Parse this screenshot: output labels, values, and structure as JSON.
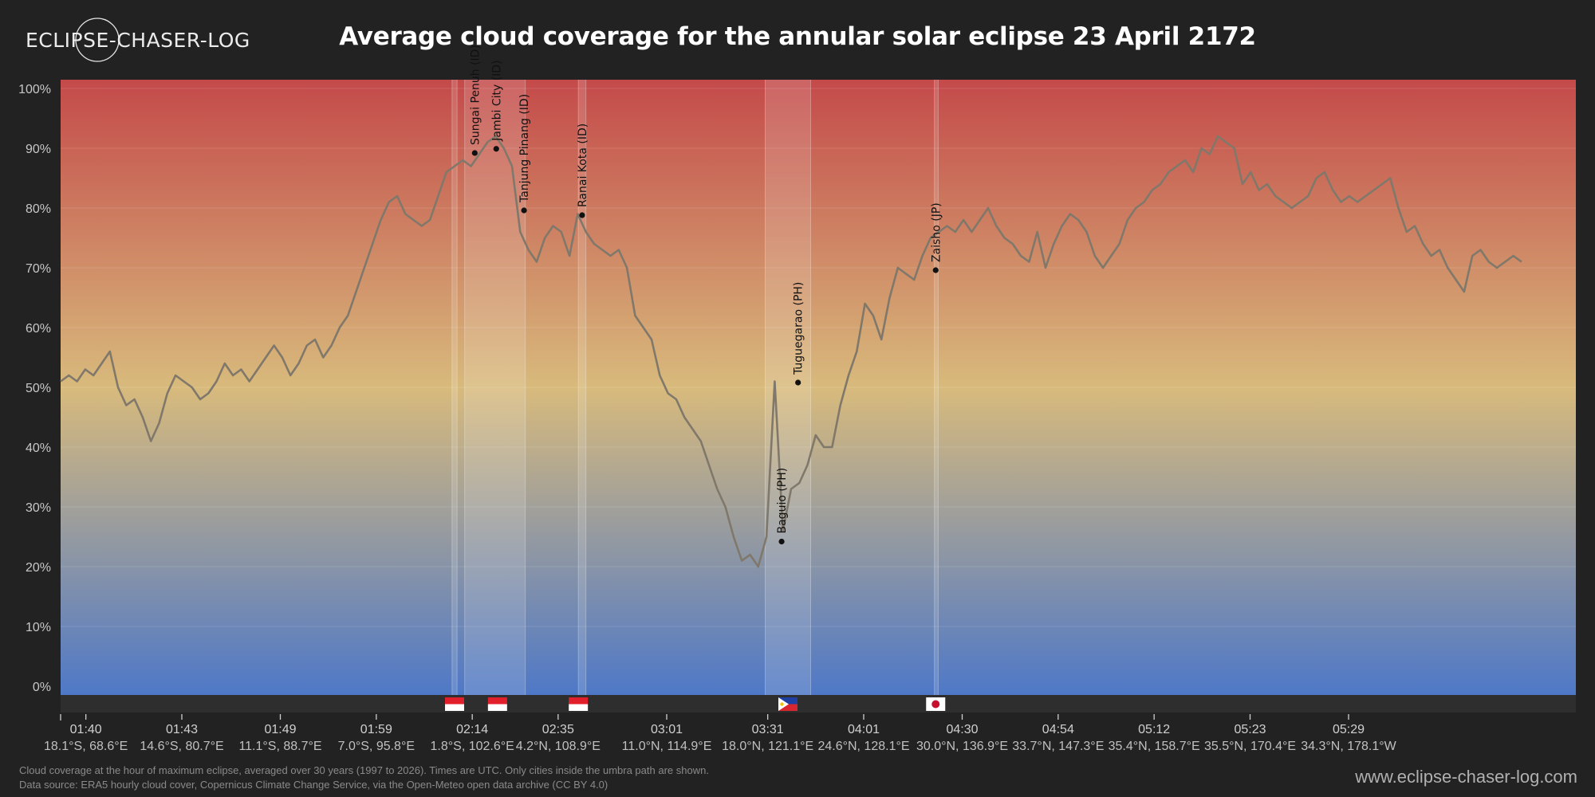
{
  "header": {
    "brand": "ECLIPSE-CHASER-LOG",
    "title": "Average cloud coverage for the annular solar eclipse 23 April 2172"
  },
  "footer": {
    "note_line1": "Cloud coverage at the hour of maximum eclipse, averaged over 30 years (1997 to 2026). Times are UTC. Only cities inside the umbra path are shown.",
    "note_line2": "Data source: ERA5 hourly cloud cover, Copernicus Climate Change Service, via the Open-Meteo open data archive (CC BY 4.0)",
    "website": "www.eclipse-chaser-log.com"
  },
  "colors": {
    "background": "#222222",
    "gradient_top": "#c44a4a",
    "gradient_mid": "#d8ba7c",
    "gradient_bottom": "#4e78c7",
    "line": "#80786a",
    "band_fill": "#ffffff",
    "flag_strip": "#2e2e2e"
  },
  "chart_data": {
    "type": "line",
    "ylim": [
      0,
      100
    ],
    "yticks": [
      "0%",
      "10%",
      "20%",
      "30%",
      "40%",
      "50%",
      "60%",
      "70%",
      "80%",
      "90%",
      "100%"
    ],
    "grid": true,
    "x_domain": [
      0,
      600
    ],
    "x_ticks": [
      {
        "x": 10,
        "time": "01:40",
        "coord": "18.1°S, 68.6°E"
      },
      {
        "x": 48,
        "time": "01:43",
        "coord": "14.6°S, 80.7°E"
      },
      {
        "x": 87,
        "time": "01:49",
        "coord": "11.1°S, 88.7°E"
      },
      {
        "x": 125,
        "time": "01:59",
        "coord": "7.0°S, 95.8°E"
      },
      {
        "x": 163,
        "time": "02:14",
        "coord": "1.8°S, 102.6°E"
      },
      {
        "x": 197,
        "time": "02:35",
        "coord": "4.2°N, 108.9°E"
      },
      {
        "x": 240,
        "time": "03:01",
        "coord": "11.0°N, 114.9°E"
      },
      {
        "x": 280,
        "time": "03:31",
        "coord": "18.0°N, 121.1°E"
      },
      {
        "x": 318,
        "time": "04:01",
        "coord": "24.6°N, 128.1°E"
      },
      {
        "x": 357,
        "time": "04:30",
        "coord": "30.0°N, 136.9°E"
      },
      {
        "x": 395,
        "time": "04:54",
        "coord": "33.7°N, 147.3°E"
      },
      {
        "x": 433,
        "time": "05:12",
        "coord": "35.4°N, 158.7°E"
      },
      {
        "x": 471,
        "time": "05:23",
        "coord": "35.5°N, 170.4°E"
      },
      {
        "x": 510,
        "time": "05:29",
        "coord": "34.3°N, 178.1°W"
      }
    ],
    "series": [
      {
        "values": [
          51,
          52,
          51,
          53,
          52,
          54,
          56,
          50,
          47,
          48,
          45,
          41,
          44,
          49,
          52,
          51,
          50,
          48,
          49,
          51,
          54,
          52,
          53,
          51,
          53,
          55,
          57,
          55,
          52,
          54,
          57,
          58,
          55,
          57,
          60,
          62,
          66,
          70,
          74,
          78,
          81,
          82,
          79,
          78,
          77,
          78,
          82,
          86,
          87,
          88,
          87,
          89,
          91,
          92,
          90,
          87,
          76,
          73,
          71,
          75,
          77,
          76,
          72,
          79,
          76,
          74,
          73,
          72,
          73,
          70,
          62,
          60,
          58,
          52,
          49,
          48,
          45,
          43,
          41,
          37,
          33,
          30,
          25,
          21,
          22,
          20,
          25,
          51,
          26,
          33,
          34,
          37,
          42,
          40,
          40,
          47,
          52,
          56,
          64,
          62,
          58,
          65,
          70,
          69,
          68,
          72,
          75,
          76,
          77,
          76,
          78,
          76,
          78,
          80,
          77,
          75,
          74,
          72,
          71,
          76,
          70,
          74,
          77,
          79,
          78,
          76,
          72,
          70,
          72,
          74,
          78,
          80,
          81,
          83,
          84,
          86,
          87,
          88,
          86,
          90,
          89,
          92,
          91,
          90,
          84,
          86,
          83,
          84,
          82,
          81,
          80,
          81,
          82,
          85,
          86,
          83,
          81,
          82,
          81,
          82,
          83,
          84,
          85,
          80,
          76,
          77,
          74,
          72,
          73,
          70,
          68,
          66,
          72,
          73,
          71,
          70,
          71,
          72,
          71
        ],
        "x_step": 3.25
      }
    ],
    "bands": [
      {
        "x0": 155.0,
        "x1": 157.0
      },
      {
        "x0": 160.0,
        "x1": 184.0
      },
      {
        "x0": 205.0,
        "x1": 208.0
      },
      {
        "x0": 279.0,
        "x1": 297.0
      },
      {
        "x0": 346.0,
        "x1": 347.5
      }
    ],
    "cities": [
      {
        "name": "Sungai Penuh (ID)",
        "x": 164.0,
        "y": 89.2,
        "flag": "id"
      },
      {
        "name": "Jambi City (ID)",
        "x": 172.5,
        "y": 89.9,
        "flag": "id"
      },
      {
        "name": "Tanjung Pinang (ID)",
        "x": 183.5,
        "y": 79.6,
        "flag": "id"
      },
      {
        "name": "Ranai Kota (ID)",
        "x": 206.5,
        "y": 78.8,
        "flag": "id"
      },
      {
        "name": "Baguio (PH)",
        "x": 285.5,
        "y": 24.2,
        "flag": "ph"
      },
      {
        "name": "Tuguegarao (PH)",
        "x": 292.0,
        "y": 50.8,
        "flag": "ph"
      },
      {
        "name": "Zaisho (JP)",
        "x": 346.5,
        "y": 69.6,
        "flag": "jp"
      }
    ],
    "flags": [
      {
        "x": 156.0,
        "country": "id"
      },
      {
        "x": 173.0,
        "country": "id"
      },
      {
        "x": 205.0,
        "country": "id"
      },
      {
        "x": 288.0,
        "country": "ph"
      },
      {
        "x": 346.5,
        "country": "jp"
      }
    ]
  }
}
